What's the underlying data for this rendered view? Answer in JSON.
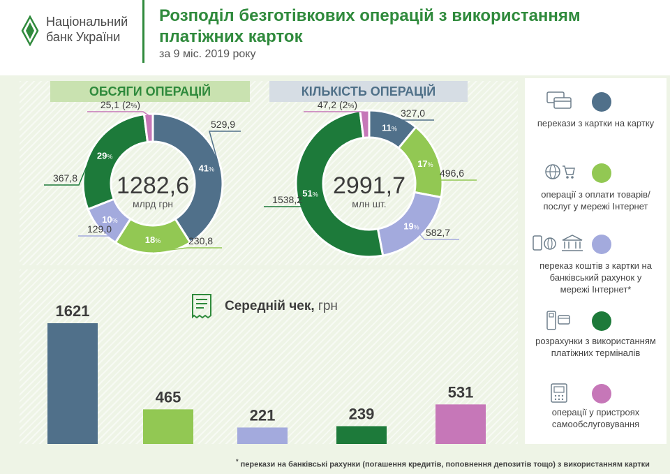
{
  "logo": {
    "line1": "Національний",
    "line2": "банк України"
  },
  "title": "Розподіл безготівкових операцій з використанням платіжних карток",
  "subtitle": "за 9 міс. 2019 року",
  "pills": {
    "volume": "ОБСЯГИ ОПЕРАЦІЙ",
    "count": "КІЛЬКІСТЬ ОПЕРАЦІЙ"
  },
  "chart_data": [
    {
      "type": "pie",
      "title": "ОБСЯГИ ОПЕРАЦІЙ",
      "total": "1282,6",
      "total_unit": "млрд грн",
      "slices": [
        {
          "label": "перекази з картки на картку",
          "value": "529,9",
          "percent": 41,
          "percent_text": "41",
          "color": "#50708a"
        },
        {
          "label": "операції з оплати товарів/послуг у мережі Інтернет",
          "value": "230,8",
          "percent": 18,
          "percent_text": "18",
          "color": "#92c853"
        },
        {
          "label": "переказ коштів з картки на банківський рахунок у мережі Інтернет*",
          "value": "129,0",
          "percent": 10,
          "percent_text": "10",
          "color": "#a3aadd"
        },
        {
          "label": "розрахунки з використанням платіжних терміналів",
          "value": "367,8",
          "percent": 29,
          "percent_text": "29",
          "color": "#1d7a3a"
        },
        {
          "label": "операції у пристроях самообслуговування",
          "value": "25,1",
          "percent": 2,
          "percent_text": "2",
          "color": "#c677b8"
        }
      ]
    },
    {
      "type": "pie",
      "title": "КІЛЬКІСТЬ ОПЕРАЦІЙ",
      "total": "2991,7",
      "total_unit": "млн шт.",
      "slices": [
        {
          "label": "перекази з картки на картку",
          "value": "327,0",
          "percent": 11,
          "percent_text": "11",
          "color": "#50708a"
        },
        {
          "label": "операції з оплати товарів/послуг у мережі Інтернет",
          "value": "496,6",
          "percent": 17,
          "percent_text": "17",
          "color": "#92c853"
        },
        {
          "label": "переказ коштів з картки на банківський рахунок у мережі Інтернет*",
          "value": "582,7",
          "percent": 19,
          "percent_text": "19",
          "color": "#a3aadd"
        },
        {
          "label": "розрахунки з використанням платіжних терміналів",
          "value": "1538,2",
          "percent": 51,
          "percent_text": "51",
          "color": "#1d7a3a"
        },
        {
          "label": "операції у пристроях самообслуговування",
          "value": "47,2",
          "percent": 2,
          "percent_text": "2",
          "color": "#c677b8"
        }
      ]
    },
    {
      "type": "bar",
      "title": "Середній чек,",
      "unit": "грн",
      "values": [
        1621,
        465,
        221,
        239,
        531
      ],
      "colors": [
        "#50708a",
        "#92c853",
        "#a3aadd",
        "#1d7a3a",
        "#c677b8"
      ]
    }
  ],
  "legend": [
    {
      "text": "перекази з картки на картку",
      "icon": "cards-icon",
      "color": "#50708a"
    },
    {
      "text": "операції з оплати товарів/послуг у мережі Інтернет",
      "icon": "globe-cart-icon",
      "color": "#92c853"
    },
    {
      "text": "переказ коштів з картки на банківський рахунок у мережі Інтернет*",
      "icon": "bank-transfer-icon",
      "color": "#a3aadd"
    },
    {
      "text": "розрахунки з використанням платіжних терміналів",
      "icon": "terminal-icon",
      "color": "#1d7a3a"
    },
    {
      "text": "операції у пристроях самообслуговування",
      "icon": "atm-icon",
      "color": "#c677b8"
    }
  ],
  "footnote": "перекази на банківські рахунки (погашення кредитів, поповнення депозитів тощо) з використанням картки",
  "footnote_mark": "*",
  "percent_sign": "%"
}
